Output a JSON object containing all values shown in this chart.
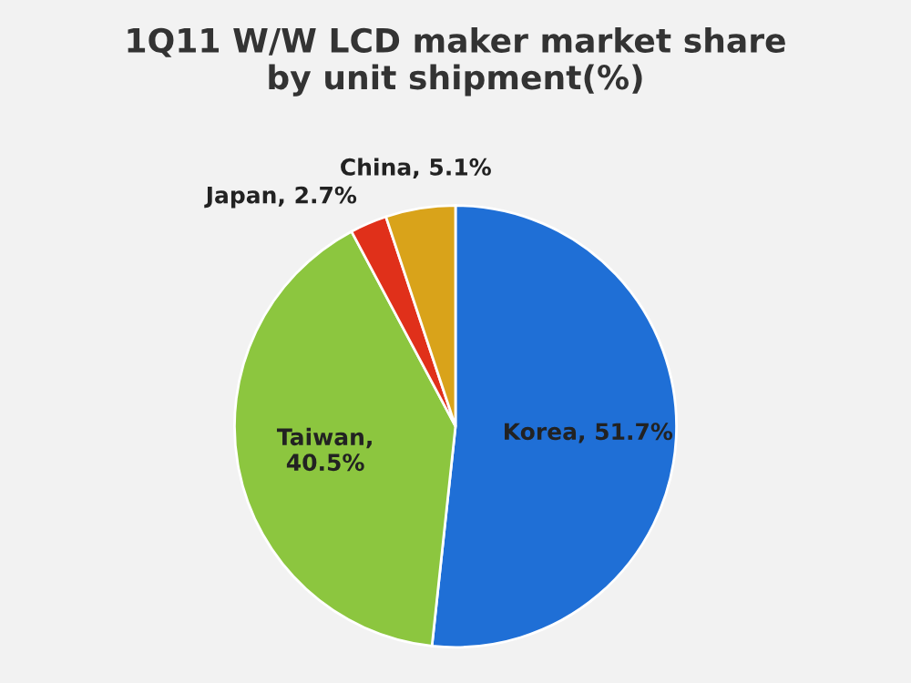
{
  "chart_data": {
    "type": "pie",
    "title": "1Q11 W/W LCD maker market share\nby unit shipment(%)",
    "categories": [
      "Korea",
      "Taiwan",
      "Japan",
      "China"
    ],
    "values": [
      51.7,
      40.5,
      2.7,
      5.1
    ],
    "colors": [
      "#1f6fd6",
      "#8cc63f",
      "#e0301a",
      "#d9a31a"
    ],
    "value_labels": [
      ", 51.7%",
      ",\n40.5%",
      ", 2.7%",
      ", 5.1%"
    ]
  }
}
